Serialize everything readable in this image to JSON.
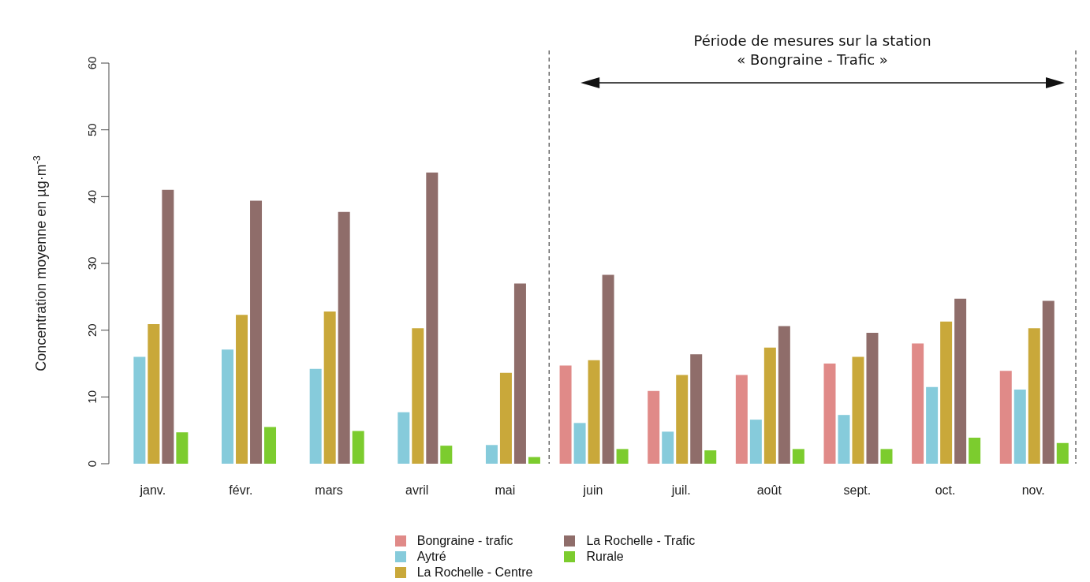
{
  "chart_data": {
    "type": "bar",
    "ylabel": "Concentration  moyenne  en  µg·m$^{-3}$",
    "categories": [
      "janv.",
      "févr.",
      "mars",
      "avril",
      "mai",
      "juin",
      "juil.",
      "août",
      "sept.",
      "oct.",
      "nov."
    ],
    "series": [
      {
        "name": "Bongraine - trafic",
        "color": "#e08a88",
        "values": [
          null,
          null,
          null,
          null,
          null,
          14.7,
          10.9,
          13.3,
          15.0,
          18.0,
          13.9
        ]
      },
      {
        "name": "Aytré",
        "color": "#86cbdb",
        "values": [
          16.0,
          17.1,
          14.2,
          7.7,
          2.8,
          6.1,
          4.8,
          6.6,
          7.3,
          11.5,
          11.1
        ]
      },
      {
        "name": "La Rochelle - Centre",
        "color": "#c9a83a",
        "values": [
          20.9,
          22.3,
          22.8,
          20.3,
          13.6,
          15.5,
          13.3,
          17.4,
          16.0,
          21.3,
          20.3
        ]
      },
      {
        "name": "La Rochelle - Trafic",
        "color": "#8f6d6a",
        "values": [
          41.0,
          39.4,
          37.7,
          43.6,
          27.0,
          28.3,
          16.4,
          20.6,
          19.6,
          24.7,
          24.4
        ]
      },
      {
        "name": "Rurale",
        "color": "#7ccc2e",
        "values": [
          4.7,
          5.5,
          4.9,
          2.7,
          1.0,
          2.2,
          2.0,
          2.2,
          2.2,
          3.9,
          3.1
        ]
      }
    ],
    "ylim": [
      0,
      60
    ],
    "yticks": [
      0,
      10,
      20,
      30,
      40,
      50,
      60
    ],
    "grid": false,
    "legend": "bottom",
    "annotations": [
      "Période de mesures sur la station\n« Bongraine - Trafic »"
    ]
  }
}
